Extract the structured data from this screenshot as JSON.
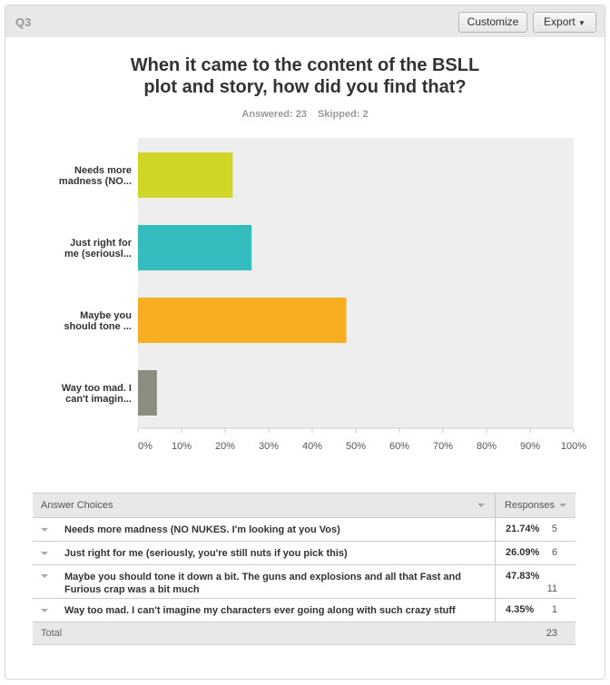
{
  "header": {
    "question_id": "Q3",
    "customize_label": "Customize",
    "export_label": "Export"
  },
  "title_line1": "When it came to the content of the BSLL",
  "title_line2": "plot and story, how did you find that?",
  "answered": "Answered: 23",
  "skipped": "Skipped: 2",
  "chart_data": {
    "type": "bar",
    "orientation": "horizontal",
    "title": "When it came to the content of the BSLL plot and story, how did you find that?",
    "categories": [
      "Needs more madness (NO...",
      "Just right for me (seriousl...",
      "Maybe you should tone ...",
      "Way too mad. I can't imagin..."
    ],
    "category_lines": [
      [
        "Needs more",
        "madness (NO..."
      ],
      [
        "Just right for",
        "me (seriousl..."
      ],
      [
        "Maybe you",
        "should tone ..."
      ],
      [
        "Way too mad. I",
        "can't imagin..."
      ]
    ],
    "values": [
      21.74,
      26.09,
      47.83,
      4.35
    ],
    "colors": [
      "#cfd626",
      "#35bcbf",
      "#f7ae20",
      "#8c8c80"
    ],
    "xlim": [
      0,
      100
    ],
    "xticks": [
      "0%",
      "10%",
      "20%",
      "30%",
      "40%",
      "50%",
      "60%",
      "70%",
      "80%",
      "90%",
      "100%"
    ],
    "grid": false
  },
  "table": {
    "col_choices": "Answer Choices",
    "col_responses": "Responses",
    "rows": [
      {
        "choice": "Needs more madness (NO NUKES. I'm looking at you Vos)",
        "percent": "21.74%",
        "count": "5"
      },
      {
        "choice": "Just right for me (seriously, you're still nuts if you pick this)",
        "percent": "26.09%",
        "count": "6"
      },
      {
        "choice": "Maybe you should tone it down a bit. The guns and explosions and all that Fast and Furious crap was a bit much",
        "percent": "47.83%",
        "count": "11"
      },
      {
        "choice": "Way too mad. I can't imagine my characters ever going along with such crazy stuff",
        "percent": "4.35%",
        "count": "1"
      }
    ],
    "total_label": "Total",
    "total": "23"
  }
}
